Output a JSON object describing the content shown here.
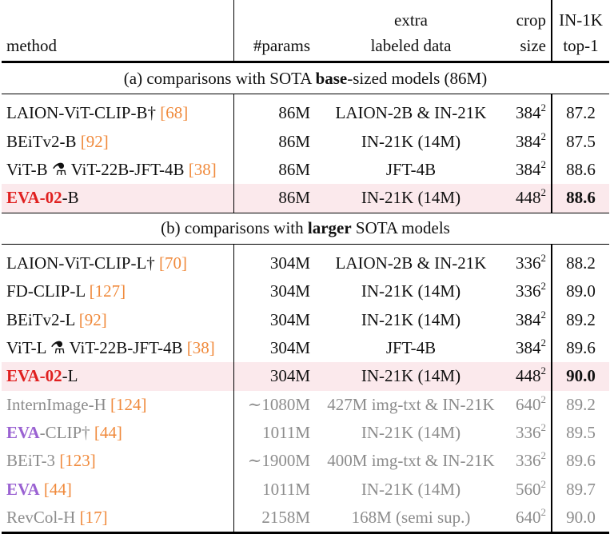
{
  "header": {
    "row1": {
      "method": "",
      "params": "",
      "data": "extra",
      "crop": "crop",
      "top1": "IN-1K"
    },
    "row2": {
      "method": "method",
      "params": "#params",
      "data": "labeled data",
      "crop": "size",
      "top1": "top-1"
    }
  },
  "section_a": {
    "prefix": "(a) comparisons with SOTA ",
    "bold": "base",
    "suffix": "-sized models (86M)"
  },
  "section_b": {
    "prefix": "(b) comparisons with ",
    "bold": "larger",
    "suffix": " SOTA models"
  },
  "rows_a": [
    {
      "name": "LAION-ViT-CLIP-B†",
      "cite": "[68]",
      "params": "86M",
      "data": "LAION-2B & IN-21K",
      "crop": "384",
      "exp": "2",
      "top1": "87.2"
    },
    {
      "name": "BEiTv2-B",
      "cite": "[92]",
      "params": "86M",
      "data": "IN-21K (14M)",
      "crop": "384",
      "exp": "2",
      "top1": "87.5"
    },
    {
      "name": "ViT-B ⚗ ViT-22B-JFT-4B",
      "cite": "[38]",
      "params": "86M",
      "data": "JFT-4B",
      "crop": "384",
      "exp": "2",
      "top1": "88.6"
    },
    {
      "name_red": "EVA-02",
      "name_rest": "-B",
      "params": "86M",
      "data": "IN-21K (14M)",
      "crop": "448",
      "exp": "2",
      "top1": "88.6"
    }
  ],
  "rows_b": [
    {
      "name": "LAION-ViT-CLIP-L†",
      "cite": "[70]",
      "params": "304M",
      "data": "LAION-2B & IN-21K",
      "crop": "336",
      "exp": "2",
      "top1": "88.2"
    },
    {
      "name": "FD-CLIP-L",
      "cite": "[127]",
      "params": "304M",
      "data": "IN-21K (14M)",
      "crop": "336",
      "exp": "2",
      "top1": "89.0"
    },
    {
      "name": "BEiTv2-L",
      "cite": "[92]",
      "params": "304M",
      "data": "IN-21K (14M)",
      "crop": "384",
      "exp": "2",
      "top1": "89.2"
    },
    {
      "name": "ViT-L ⚗ ViT-22B-JFT-4B",
      "cite": "[38]",
      "params": "304M",
      "data": "JFT-4B",
      "crop": "384",
      "exp": "2",
      "top1": "89.6"
    },
    {
      "name_red": "EVA-02",
      "name_rest": "-L",
      "params": "304M",
      "data": "IN-21K (14M)",
      "crop": "448",
      "exp": "2",
      "top1": "90.0"
    }
  ],
  "rows_gray": [
    {
      "name": "InternImage-H",
      "cite": "[124]",
      "params": "∼1080M",
      "data": "427M img-txt & IN-21K",
      "crop": "640",
      "exp": "2",
      "top1": "89.2"
    },
    {
      "name_purple": "EVA",
      "name_rest": "-CLIP†",
      "cite": "[44]",
      "params": "1011M",
      "data": "IN-21K (14M)",
      "crop": "336",
      "exp": "2",
      "top1": "89.5"
    },
    {
      "name": "BEiT-3",
      "cite": "[123]",
      "params": "∼1900M",
      "data": "400M img-txt & IN-21K",
      "crop": "336",
      "exp": "2",
      "top1": "89.6"
    },
    {
      "name_purple": "EVA",
      "name_rest": "",
      "cite": "[44]",
      "params": "1011M",
      "data": "IN-21K (14M)",
      "crop": "560",
      "exp": "2",
      "top1": "89.7"
    },
    {
      "name": "RevCol-H",
      "cite": "[17]",
      "params": "2158M",
      "data": "168M (semi sup.)",
      "crop": "640",
      "exp": "2",
      "top1": "90.0"
    }
  ],
  "colors": {
    "highlight_bg": "#fbe9ec",
    "eva02_red": "#e02020",
    "eva_purple": "#9a62d2",
    "citation_orange": "#f08a3c",
    "gray_text": "#8c8c8c"
  }
}
